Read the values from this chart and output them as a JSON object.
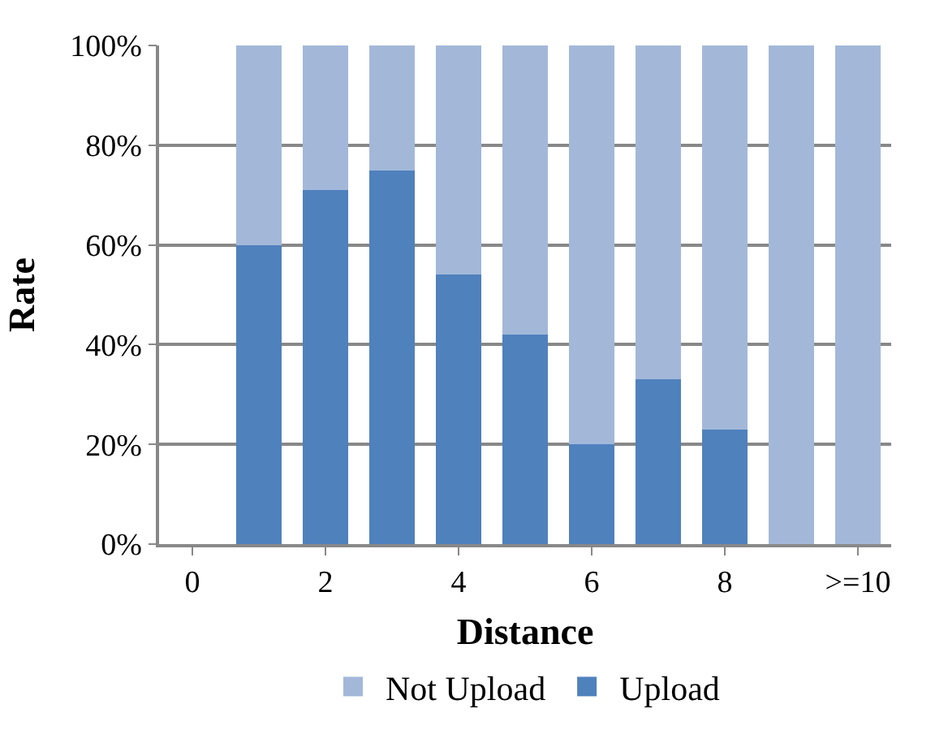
{
  "chart_data": {
    "type": "bar",
    "stacked": true,
    "xlabel": "Distance",
    "ylabel": "Rate",
    "categories": [
      "0",
      null,
      "2",
      null,
      "4",
      null,
      "6",
      null,
      "8",
      null,
      ">=10"
    ],
    "series": [
      {
        "name": "Upload",
        "color": "#4f81bd",
        "values": [
          null,
          60,
          71,
          75,
          54,
          42,
          20,
          33,
          23,
          0,
          0
        ]
      },
      {
        "name": "Not Upload",
        "color": "#a3b8d9",
        "values": [
          null,
          40,
          29,
          25,
          46,
          58,
          80,
          67,
          77,
          100,
          100
        ]
      }
    ],
    "ylim": [
      0,
      100
    ],
    "yticks": [
      {
        "value": 0,
        "label": "0%"
      },
      {
        "value": 20,
        "label": "20%"
      },
      {
        "value": 40,
        "label": "40%"
      },
      {
        "value": 60,
        "label": "60%"
      },
      {
        "value": 80,
        "label": "80%"
      },
      {
        "value": 100,
        "label": "100%"
      }
    ],
    "grid": "y",
    "legend": "bottom"
  }
}
